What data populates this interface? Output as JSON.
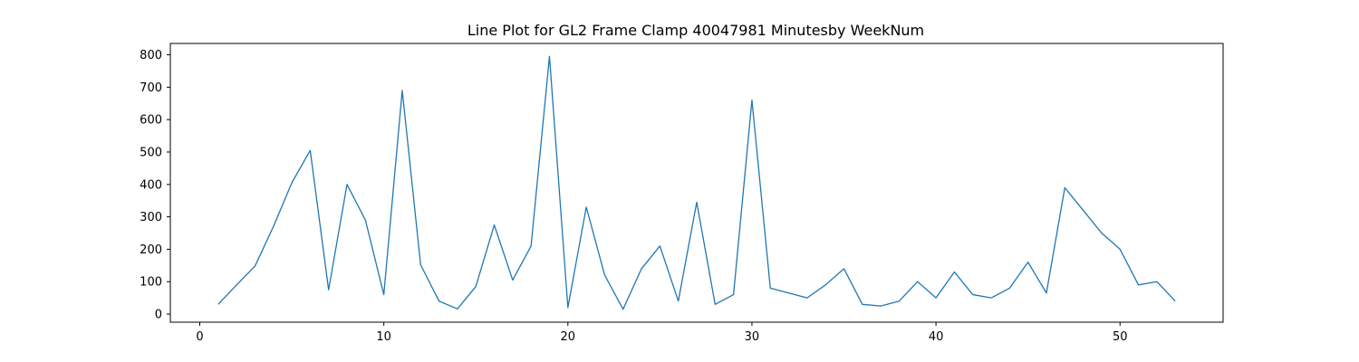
{
  "chart_data": {
    "type": "line",
    "title": "Line Plot for GL2 Frame Clamp 40047981 Minutesby WeekNum",
    "xlabel": "",
    "ylabel": "",
    "xlim": [
      -1.6,
      55.6
    ],
    "ylim": [
      -25,
      835
    ],
    "xticks": [
      0,
      10,
      20,
      30,
      40,
      50
    ],
    "yticks": [
      0,
      100,
      200,
      300,
      400,
      500,
      600,
      700,
      800
    ],
    "grid": false,
    "line_color": "#1f77b4",
    "series": [
      {
        "x": [
          1,
          2,
          3,
          4,
          5,
          6,
          7,
          8,
          9,
          10,
          11,
          12,
          13,
          14,
          15,
          16,
          17,
          18,
          19,
          20,
          21,
          22,
          23,
          24,
          25,
          26,
          27,
          28,
          29,
          30,
          31,
          32,
          33,
          34,
          35,
          36,
          37,
          38,
          39,
          40,
          41,
          42,
          43,
          44,
          45,
          46,
          47,
          48,
          49,
          50,
          51,
          52,
          53
        ],
        "values": [
          30,
          90,
          148,
          270,
          405,
          505,
          75,
          400,
          290,
          60,
          690,
          152,
          40,
          16,
          85,
          275,
          105,
          210,
          795,
          20,
          330,
          120,
          15,
          140,
          210,
          40,
          345,
          30,
          60,
          660,
          80,
          65,
          50,
          90,
          140,
          30,
          25,
          40,
          100,
          50,
          130,
          60,
          50,
          80,
          160,
          65,
          390,
          320,
          250,
          200,
          90,
          100,
          40
        ]
      }
    ]
  }
}
